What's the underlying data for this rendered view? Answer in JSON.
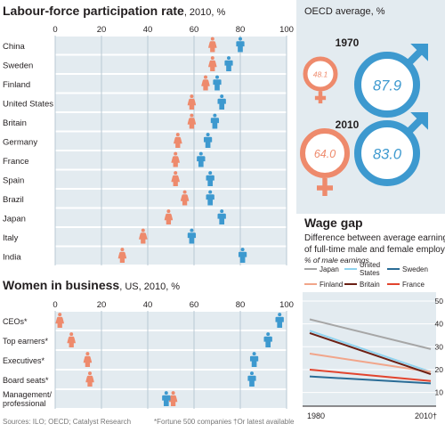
{
  "colors": {
    "female": "#ee8a6c",
    "male": "#3d99cf",
    "band": "#e3ebf0",
    "grid": "#b9c8d3",
    "text": "#231f20"
  },
  "chart_data": [
    {
      "type": "scatter",
      "title": "Labour-force participation rate",
      "subtitle": ", 2010, %",
      "xlim": [
        0,
        100
      ],
      "ticks": [
        "0",
        "20",
        "40",
        "60",
        "80",
        "100"
      ],
      "categories": [
        "China",
        "Sweden",
        "Finland",
        "United States",
        "Britain",
        "Germany",
        "France",
        "Spain",
        "Brazil",
        "Japan",
        "Italy",
        "India"
      ],
      "series": [
        {
          "name": "",
          "values": [
            68,
            68,
            65,
            59,
            59,
            53,
            52,
            52,
            56,
            49,
            38,
            29
          ]
        },
        {
          "name": "",
          "values": [
            80,
            75,
            70,
            72,
            69,
            66,
            63,
            67,
            67,
            72,
            59,
            81
          ]
        }
      ]
    },
    {
      "type": "scatter",
      "title": "Women in business",
      "subtitle": ", US, 2010, %",
      "xlim": [
        0,
        100
      ],
      "ticks": [
        "0",
        "20",
        "40",
        "60",
        "80",
        "100"
      ],
      "categories": [
        "CEOs*",
        "Top earners*",
        "Executives*",
        "Board seats*",
        "Management/ professional"
      ],
      "series": [
        {
          "name": "",
          "values": [
            2,
            7,
            14,
            15,
            51
          ]
        },
        {
          "name": "",
          "values": [
            97,
            92,
            86,
            85,
            48
          ]
        }
      ]
    },
    {
      "type": "line",
      "title": "Wage gap",
      "subtitle": "Difference between average earnings of full-time male and female employees",
      "ylabel": "% of male earnings",
      "x": [
        "1980",
        "2010"
      ],
      "x_note": "†",
      "ylim": [
        0,
        50
      ],
      "yticks": [
        "10",
        "20",
        "30",
        "40",
        "50"
      ],
      "series": [
        {
          "name": "Japan",
          "color": "#a6a6a6",
          "values": [
            42,
            29
          ]
        },
        {
          "name": "United States",
          "color": "#8fd2ee",
          "values": [
            37,
            19
          ]
        },
        {
          "name": "Sweden",
          "color": "#2a6c96",
          "values": [
            17,
            14
          ]
        },
        {
          "name": "Finland",
          "color": "#f1a58a",
          "values": [
            27,
            19
          ]
        },
        {
          "name": "Britain",
          "color": "#6b1f14",
          "values": [
            36,
            18
          ]
        },
        {
          "name": "France",
          "color": "#e2442e",
          "values": [
            20,
            15
          ]
        }
      ]
    }
  ],
  "oecd": {
    "title": "OECD average, %",
    "years": [
      {
        "year": "1970",
        "female": "48.1",
        "male": "87.9"
      },
      {
        "year": "2010",
        "female": "64.0",
        "male": "83.0"
      }
    ]
  },
  "footer": {
    "sources": "Sources: ILO; OECD; Catalyst Research",
    "note1": "*Fortune 500 companies",
    "note2": "†Or latest available"
  }
}
